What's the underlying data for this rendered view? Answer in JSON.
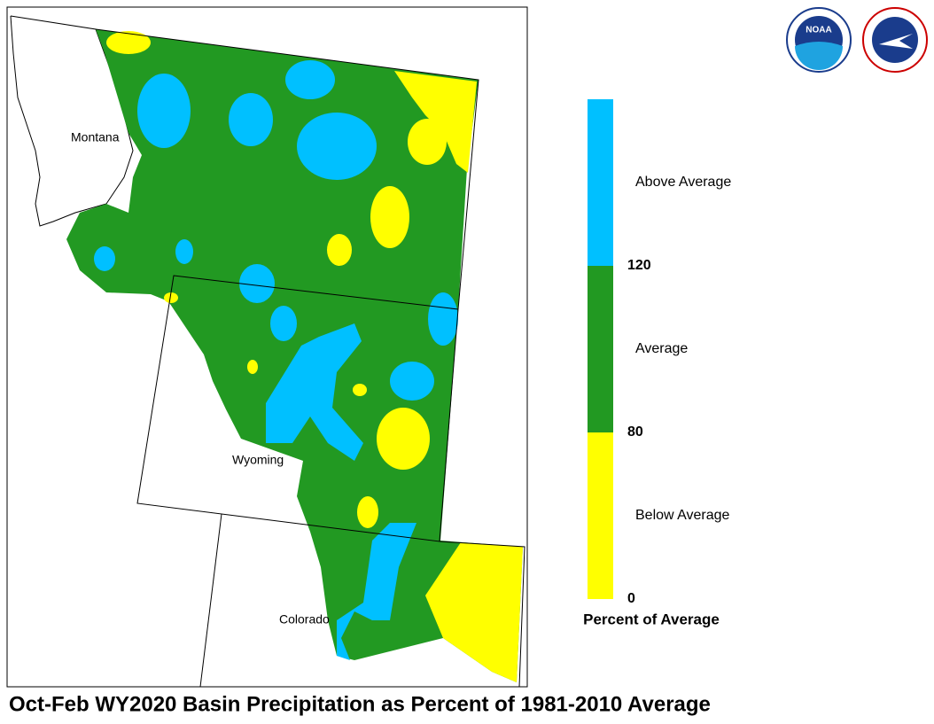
{
  "title": "Oct-Feb WY2020 Basin Precipitation as Percent of 1981-2010 Average",
  "logo_text": "NOAA",
  "state_labels": [
    "Montana",
    "Wyoming",
    "Colorado"
  ],
  "legend": {
    "title": "Percent of Average",
    "breaks": [
      0,
      80,
      120
    ],
    "classes": [
      {
        "label": "Below Average",
        "color": "#ffff00"
      },
      {
        "label": "Average",
        "color": "#229922"
      },
      {
        "label": "Above Average",
        "color": "#00c0ff"
      }
    ]
  }
}
